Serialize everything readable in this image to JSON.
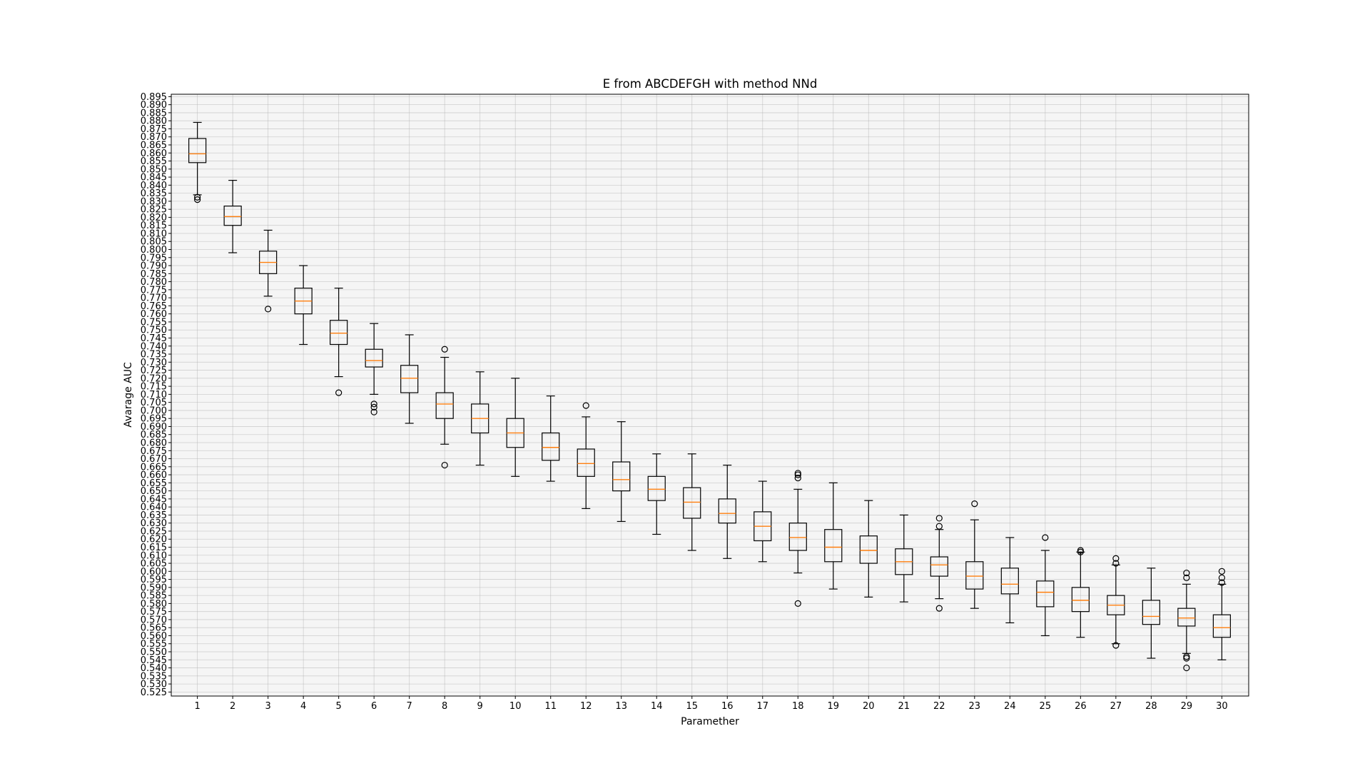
{
  "chart_data": {
    "type": "boxplot",
    "title": "E from ABCDEFGH with method NNd",
    "xlabel": "Paramether",
    "ylabel": "Avarage AUC",
    "ylim": [
      0.5225,
      0.8965
    ],
    "ytick_start": 0.525,
    "ytick_step": 0.005,
    "ytick_count": 75,
    "grid": true,
    "colors": {
      "box": "#000000",
      "median": "#ff7f0e",
      "grid": "#b0b0b0",
      "background": "#f5f5f5"
    },
    "categories": [
      "1",
      "2",
      "3",
      "4",
      "5",
      "6",
      "7",
      "8",
      "9",
      "10",
      "11",
      "12",
      "13",
      "14",
      "15",
      "16",
      "17",
      "18",
      "19",
      "20",
      "21",
      "22",
      "23",
      "24",
      "25",
      "26",
      "27",
      "28",
      "29",
      "30"
    ],
    "boxes": [
      {
        "whislo": 0.834,
        "q1": 0.854,
        "med": 0.8595,
        "q3": 0.869,
        "whishi": 0.879,
        "fliers": [
          0.831,
          0.8325
        ]
      },
      {
        "whislo": 0.798,
        "q1": 0.815,
        "med": 0.8205,
        "q3": 0.827,
        "whishi": 0.843,
        "fliers": []
      },
      {
        "whislo": 0.771,
        "q1": 0.785,
        "med": 0.792,
        "q3": 0.799,
        "whishi": 0.812,
        "fliers": [
          0.763
        ]
      },
      {
        "whislo": 0.741,
        "q1": 0.76,
        "med": 0.768,
        "q3": 0.776,
        "whishi": 0.79,
        "fliers": []
      },
      {
        "whislo": 0.721,
        "q1": 0.741,
        "med": 0.748,
        "q3": 0.756,
        "whishi": 0.776,
        "fliers": [
          0.711
        ]
      },
      {
        "whislo": 0.71,
        "q1": 0.727,
        "med": 0.731,
        "q3": 0.738,
        "whishi": 0.754,
        "fliers": [
          0.704,
          0.702,
          0.699
        ]
      },
      {
        "whislo": 0.692,
        "q1": 0.711,
        "med": 0.72,
        "q3": 0.728,
        "whishi": 0.747,
        "fliers": []
      },
      {
        "whislo": 0.679,
        "q1": 0.695,
        "med": 0.704,
        "q3": 0.711,
        "whishi": 0.733,
        "fliers": [
          0.738,
          0.666
        ]
      },
      {
        "whislo": 0.666,
        "q1": 0.686,
        "med": 0.695,
        "q3": 0.704,
        "whishi": 0.724,
        "fliers": []
      },
      {
        "whislo": 0.659,
        "q1": 0.677,
        "med": 0.686,
        "q3": 0.695,
        "whishi": 0.72,
        "fliers": []
      },
      {
        "whislo": 0.656,
        "q1": 0.669,
        "med": 0.677,
        "q3": 0.686,
        "whishi": 0.709,
        "fliers": []
      },
      {
        "whislo": 0.639,
        "q1": 0.659,
        "med": 0.667,
        "q3": 0.676,
        "whishi": 0.696,
        "fliers": [
          0.703
        ]
      },
      {
        "whislo": 0.631,
        "q1": 0.65,
        "med": 0.657,
        "q3": 0.668,
        "whishi": 0.693,
        "fliers": []
      },
      {
        "whislo": 0.623,
        "q1": 0.644,
        "med": 0.651,
        "q3": 0.659,
        "whishi": 0.673,
        "fliers": []
      },
      {
        "whislo": 0.613,
        "q1": 0.633,
        "med": 0.643,
        "q3": 0.652,
        "whishi": 0.673,
        "fliers": []
      },
      {
        "whislo": 0.608,
        "q1": 0.63,
        "med": 0.636,
        "q3": 0.645,
        "whishi": 0.666,
        "fliers": []
      },
      {
        "whislo": 0.606,
        "q1": 0.619,
        "med": 0.628,
        "q3": 0.637,
        "whishi": 0.656,
        "fliers": []
      },
      {
        "whislo": 0.599,
        "q1": 0.613,
        "med": 0.621,
        "q3": 0.63,
        "whishi": 0.651,
        "fliers": [
          0.661,
          0.66,
          0.658,
          0.58
        ]
      },
      {
        "whislo": 0.589,
        "q1": 0.606,
        "med": 0.615,
        "q3": 0.626,
        "whishi": 0.655,
        "fliers": []
      },
      {
        "whislo": 0.584,
        "q1": 0.605,
        "med": 0.613,
        "q3": 0.622,
        "whishi": 0.644,
        "fliers": []
      },
      {
        "whislo": 0.581,
        "q1": 0.598,
        "med": 0.606,
        "q3": 0.614,
        "whishi": 0.635,
        "fliers": []
      },
      {
        "whislo": 0.583,
        "q1": 0.597,
        "med": 0.604,
        "q3": 0.609,
        "whishi": 0.626,
        "fliers": [
          0.633,
          0.628,
          0.577
        ]
      },
      {
        "whislo": 0.577,
        "q1": 0.589,
        "med": 0.597,
        "q3": 0.606,
        "whishi": 0.632,
        "fliers": [
          0.642
        ]
      },
      {
        "whislo": 0.568,
        "q1": 0.586,
        "med": 0.592,
        "q3": 0.602,
        "whishi": 0.621,
        "fliers": []
      },
      {
        "whislo": 0.56,
        "q1": 0.578,
        "med": 0.587,
        "q3": 0.594,
        "whishi": 0.613,
        "fliers": [
          0.621
        ]
      },
      {
        "whislo": 0.559,
        "q1": 0.575,
        "med": 0.582,
        "q3": 0.59,
        "whishi": 0.612,
        "fliers": [
          0.613,
          0.612
        ]
      },
      {
        "whislo": 0.555,
        "q1": 0.573,
        "med": 0.579,
        "q3": 0.585,
        "whishi": 0.604,
        "fliers": [
          0.608,
          0.605,
          0.554
        ]
      },
      {
        "whislo": 0.546,
        "q1": 0.567,
        "med": 0.572,
        "q3": 0.582,
        "whishi": 0.602,
        "fliers": []
      },
      {
        "whislo": 0.549,
        "q1": 0.566,
        "med": 0.571,
        "q3": 0.577,
        "whishi": 0.592,
        "fliers": [
          0.599,
          0.596,
          0.547,
          0.546,
          0.54
        ]
      },
      {
        "whislo": 0.545,
        "q1": 0.559,
        "med": 0.565,
        "q3": 0.573,
        "whishi": 0.592,
        "fliers": [
          0.6,
          0.596,
          0.593
        ]
      }
    ]
  }
}
